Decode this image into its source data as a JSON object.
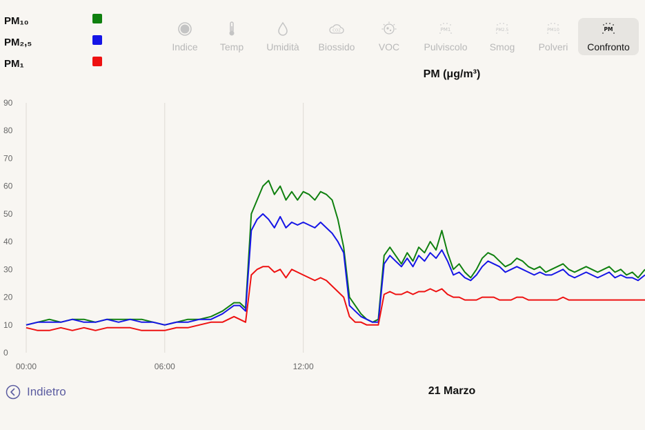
{
  "legend": [
    {
      "label": "PM₁₀",
      "color": "#0f800f"
    },
    {
      "label": "PM₂,₅",
      "color": "#1515e6"
    },
    {
      "label": "PM₁",
      "color": "#ee1111"
    }
  ],
  "toolbar": {
    "items": [
      {
        "label": "Indice",
        "icon": "index-circle-icon",
        "active": false
      },
      {
        "label": "Temp",
        "icon": "thermometer-icon",
        "active": false
      },
      {
        "label": "Umidità",
        "icon": "droplet-icon",
        "active": false
      },
      {
        "label": "Biossido",
        "icon": "co2-cloud-icon",
        "active": false
      },
      {
        "label": "VOC",
        "icon": "voc-molecule-icon",
        "active": false
      },
      {
        "label": "Pulviscolo",
        "icon": "pm1-dust-icon",
        "active": false
      },
      {
        "label": "Smog",
        "icon": "pm25-dust-icon",
        "active": false
      },
      {
        "label": "Polveri",
        "icon": "pm10-dust-icon",
        "active": false
      },
      {
        "label": "Confronto",
        "icon": "pm-compare-icon",
        "active": true
      }
    ]
  },
  "chart_title": "PM (μg/m³)",
  "date_label": "21 Marzo",
  "back_label": "Indietro",
  "chart_data": {
    "type": "line",
    "title": "PM (μg/m³)",
    "xlabel": "",
    "ylabel": "",
    "x_unit": "hours",
    "xlim": [
      0,
      26.8
    ],
    "ylim": [
      0,
      90
    ],
    "y_ticks": [
      "0",
      "10",
      "20",
      "30",
      "40",
      "50",
      "60",
      "70",
      "80",
      "90"
    ],
    "x_ticks": [
      {
        "x": 0,
        "label": "00:00"
      },
      {
        "x": 6,
        "label": "06:00"
      },
      {
        "x": 12,
        "label": "12:00"
      }
    ],
    "grid": "vertical",
    "x": [
      0,
      0.5,
      1,
      1.5,
      2,
      2.5,
      3,
      3.5,
      4,
      4.5,
      5,
      5.5,
      6,
      6.5,
      7,
      7.5,
      8,
      8.5,
      9,
      9.25,
      9.5,
      9.75,
      10,
      10.25,
      10.5,
      10.75,
      11,
      11.25,
      11.5,
      11.75,
      12,
      12.25,
      12.5,
      12.75,
      13,
      13.25,
      13.5,
      13.75,
      14,
      14.25,
      14.5,
      14.75,
      15,
      15.25,
      15.5,
      15.75,
      16,
      16.25,
      16.5,
      16.75,
      17,
      17.25,
      17.5,
      17.75,
      18,
      18.25,
      18.5,
      18.75,
      19,
      19.25,
      19.5,
      19.75,
      20,
      20.25,
      20.5,
      20.75,
      21,
      21.25,
      21.5,
      21.75,
      22,
      22.25,
      22.5,
      22.75,
      23,
      23.25,
      23.5,
      23.75,
      24,
      24.25,
      24.5,
      24.75,
      25,
      25.25,
      25.5,
      25.75,
      26,
      26.25,
      26.5,
      26.8
    ],
    "series": [
      {
        "name": "PM₁₀",
        "color": "#0f800f",
        "values": [
          10,
          11,
          12,
          11,
          12,
          12,
          11,
          12,
          12,
          12,
          12,
          11,
          10,
          11,
          12,
          12,
          13,
          15,
          18,
          18,
          16,
          50,
          55,
          60,
          62,
          57,
          60,
          55,
          58,
          55,
          58,
          57,
          55,
          58,
          57,
          55,
          48,
          38,
          20,
          17,
          14,
          12,
          11,
          12,
          35,
          38,
          35,
          32,
          36,
          33,
          38,
          36,
          40,
          37,
          44,
          36,
          30,
          32,
          29,
          27,
          30,
          34,
          36,
          35,
          33,
          31,
          32,
          34,
          33,
          31,
          30,
          31,
          29,
          30,
          31,
          32,
          30,
          29,
          30,
          31,
          30,
          29,
          30,
          31,
          29,
          30,
          28,
          29,
          27,
          30
        ]
      },
      {
        "name": "PM₂,₅",
        "color": "#1515e6",
        "values": [
          10,
          11,
          11,
          11,
          12,
          11,
          11,
          12,
          11,
          12,
          11,
          11,
          10,
          11,
          11,
          12,
          12,
          14,
          17,
          17,
          15,
          44,
          48,
          50,
          48,
          45,
          49,
          45,
          47,
          46,
          47,
          46,
          45,
          47,
          45,
          43,
          40,
          36,
          17,
          15,
          13,
          12,
          11,
          11,
          32,
          35,
          33,
          31,
          34,
          31,
          35,
          33,
          36,
          34,
          37,
          33,
          28,
          29,
          27,
          26,
          28,
          31,
          33,
          32,
          31,
          29,
          30,
          31,
          30,
          29,
          28,
          29,
          28,
          28,
          29,
          30,
          28,
          27,
          28,
          29,
          28,
          27,
          28,
          29,
          27,
          28,
          27,
          27,
          26,
          28
        ]
      },
      {
        "name": "PM₁",
        "color": "#ee1111",
        "values": [
          9,
          8,
          8,
          9,
          8,
          9,
          8,
          9,
          9,
          9,
          8,
          8,
          8,
          9,
          9,
          10,
          11,
          11,
          13,
          12,
          11,
          28,
          30,
          31,
          31,
          29,
          30,
          27,
          30,
          29,
          28,
          27,
          26,
          27,
          26,
          24,
          22,
          20,
          13,
          11,
          11,
          10,
          10,
          10,
          21,
          22,
          21,
          21,
          22,
          21,
          22,
          22,
          23,
          22,
          23,
          21,
          20,
          20,
          19,
          19,
          19,
          20,
          20,
          20,
          19,
          19,
          19,
          20,
          20,
          19,
          19,
          19,
          19,
          19,
          19,
          20,
          19,
          19,
          19,
          19,
          19,
          19,
          19,
          19,
          19,
          19,
          19,
          19,
          19,
          19
        ]
      }
    ]
  }
}
